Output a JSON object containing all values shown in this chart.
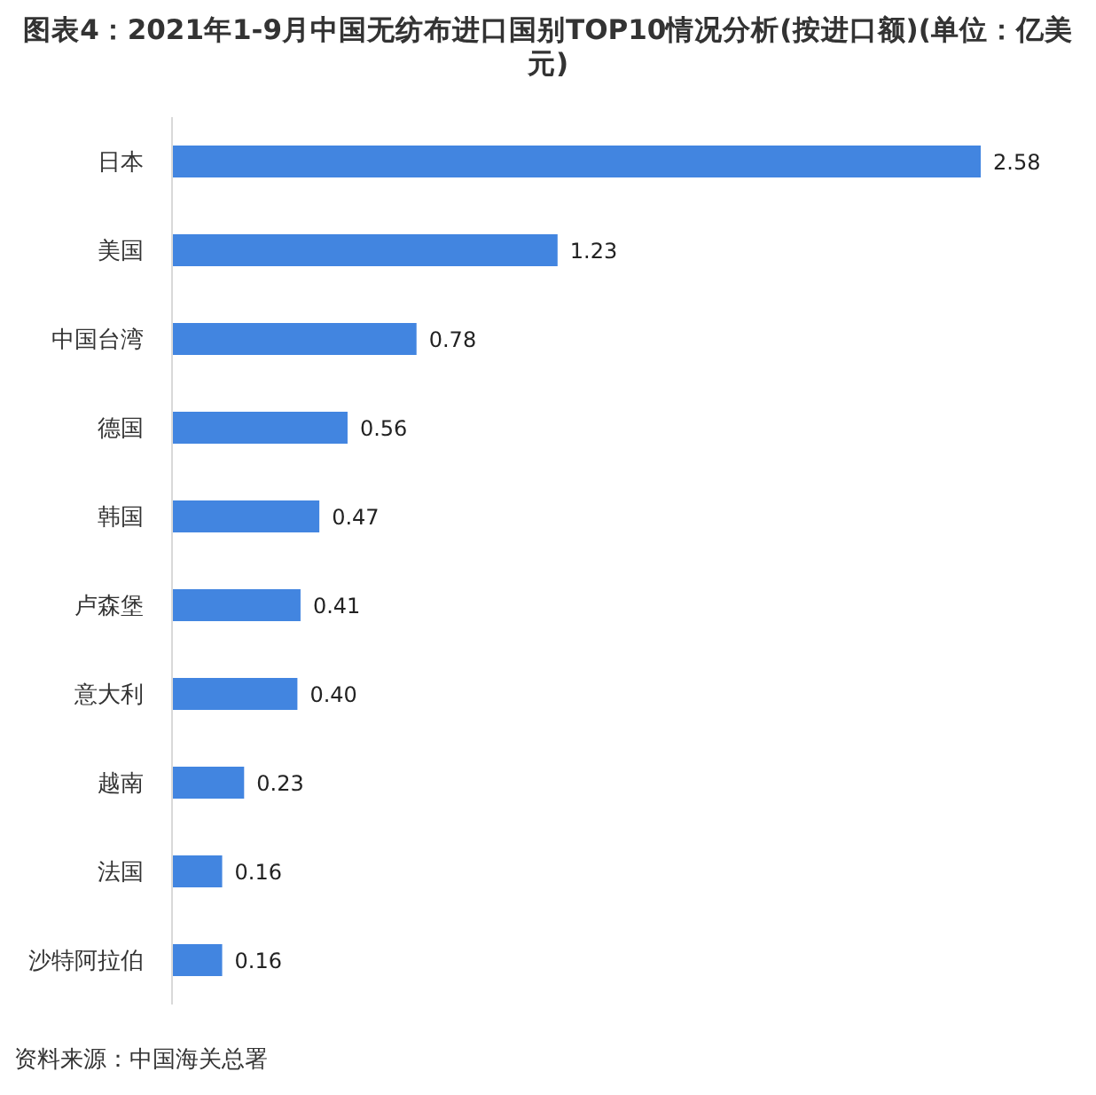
{
  "chart_data": {
    "type": "bar",
    "orientation": "horizontal",
    "title": "图表4：2021年1-9月中国无纺布进口国别TOP10情况分析(按进口额)(单位：亿美元)",
    "categories": [
      "日本",
      "美国",
      "中国台湾",
      "德国",
      "韩国",
      "卢森堡",
      "意大利",
      "越南",
      "法国",
      "沙特阿拉伯"
    ],
    "values": [
      2.58,
      1.23,
      0.78,
      0.56,
      0.47,
      0.41,
      0.4,
      0.23,
      0.16,
      0.16
    ],
    "value_labels": [
      "2.58",
      "1.23",
      "0.78",
      "0.56",
      "0.47",
      "0.41",
      "0.40",
      "0.23",
      "0.16",
      "0.16"
    ],
    "color": "#4285e0",
    "annotations": [
      "资料来源：中国海关总署"
    ]
  }
}
